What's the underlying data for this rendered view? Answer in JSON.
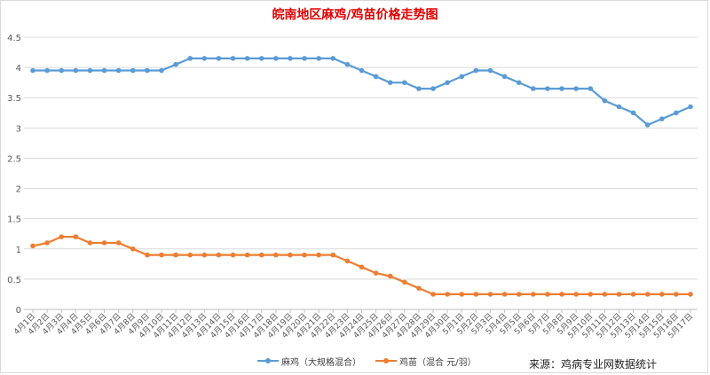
{
  "colors": {
    "series1": "#5b9bd5",
    "series2": "#ed7d31",
    "grid": "#d9d9d9",
    "title": "#e00000"
  },
  "source": "来源：鸡病专业网数据统计",
  "chart_data": {
    "type": "line",
    "title": "皖南地区麻鸡/鸡苗价格走势图",
    "xlabel": "",
    "ylabel": "",
    "ylim": [
      0,
      4.5
    ],
    "yticks": [
      "0",
      "0.5",
      "1",
      "1.5",
      "2",
      "2.5",
      "3",
      "3.5",
      "4",
      "4.5"
    ],
    "grid": true,
    "legend_position": "bottom",
    "categories": [
      "4月1日",
      "4月2日",
      "4月3日",
      "4月4日",
      "4月5日",
      "4月6日",
      "4月7日",
      "4月8日",
      "4月9日",
      "4月10日",
      "4月11日",
      "4月12日",
      "4月13日",
      "4月14日",
      "4月15日",
      "4月16日",
      "4月17日",
      "4月18日",
      "4月19日",
      "4月20日",
      "4月21日",
      "4月22日",
      "4月23日",
      "4月24日",
      "4月25日",
      "4月26日",
      "4月27日",
      "4月28日",
      "4月29日",
      "4月30日",
      "5月1日",
      "5月2日",
      "5月3日",
      "5月4日",
      "5月5日",
      "5月6日",
      "5月7日",
      "5月8日",
      "5月9日",
      "5月10日",
      "5月11日",
      "5月12日",
      "5月13日",
      "5月14日",
      "5月15日",
      "5月16日",
      "5月17日"
    ],
    "series": [
      {
        "name": "麻鸡（大规格混合）",
        "values": [
          3.95,
          3.95,
          3.95,
          3.95,
          3.95,
          3.95,
          3.95,
          3.95,
          3.95,
          3.95,
          4.05,
          4.15,
          4.15,
          4.15,
          4.15,
          4.15,
          4.15,
          4.15,
          4.15,
          4.15,
          4.15,
          4.15,
          4.05,
          3.95,
          3.85,
          3.75,
          3.75,
          3.65,
          3.65,
          3.75,
          3.85,
          3.95,
          3.95,
          3.85,
          3.75,
          3.65,
          3.65,
          3.65,
          3.65,
          3.65,
          3.45,
          3.35,
          3.25,
          3.05,
          3.15,
          3.25,
          3.35
        ]
      },
      {
        "name": "鸡苗（混合 元/羽）",
        "values": [
          1.05,
          1.1,
          1.2,
          1.2,
          1.1,
          1.1,
          1.1,
          1.0,
          0.9,
          0.9,
          0.9,
          0.9,
          0.9,
          0.9,
          0.9,
          0.9,
          0.9,
          0.9,
          0.9,
          0.9,
          0.9,
          0.9,
          0.8,
          0.7,
          0.6,
          0.55,
          0.45,
          0.35,
          0.25,
          0.25,
          0.25,
          0.25,
          0.25,
          0.25,
          0.25,
          0.25,
          0.25,
          0.25,
          0.25,
          0.25,
          0.25,
          0.25,
          0.25,
          0.25,
          0.25,
          0.25,
          0.25
        ]
      }
    ]
  }
}
